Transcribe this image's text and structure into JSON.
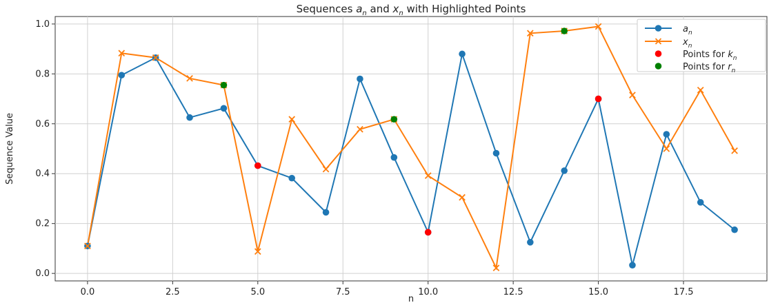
{
  "chart_data": {
    "type": "line",
    "title": "Sequences $a_n$ and $x_n$ with Highlighted Points",
    "xlabel": "n",
    "ylabel": "Sequence Value",
    "xlim": [
      -0.95,
      19.95
    ],
    "ylim": [
      -0.03,
      1.03
    ],
    "x_ticks": [
      0.0,
      2.5,
      5.0,
      7.5,
      10.0,
      12.5,
      15.0,
      17.5
    ],
    "x_tick_labels": [
      "0.0",
      "2.5",
      "5.0",
      "7.5",
      "10.0",
      "12.5",
      "15.0",
      "17.5"
    ],
    "y_ticks": [
      0.0,
      0.2,
      0.4,
      0.6,
      0.8,
      1.0
    ],
    "y_tick_labels": [
      "0.0",
      "0.2",
      "0.4",
      "0.6",
      "0.8",
      "1.0"
    ],
    "grid": true,
    "legend_position": "top-right",
    "x": [
      0,
      1,
      2,
      3,
      4,
      5,
      6,
      7,
      8,
      9,
      10,
      11,
      12,
      13,
      14,
      15,
      16,
      17,
      18,
      19
    ],
    "series": [
      {
        "name": "$a_n$",
        "color": "#1f77b4",
        "marker": "circle",
        "values": [
          0.11,
          0.795,
          0.865,
          0.625,
          0.662,
          0.432,
          0.382,
          0.245,
          0.78,
          0.465,
          0.165,
          0.88,
          0.482,
          0.125,
          0.412,
          0.7,
          0.033,
          0.558,
          0.285,
          0.175
        ]
      },
      {
        "name": "$x_n$",
        "color": "#ff7f0e",
        "marker": "x",
        "values": [
          0.11,
          0.883,
          0.865,
          0.782,
          0.755,
          0.088,
          0.618,
          0.418,
          0.578,
          0.618,
          0.392,
          0.305,
          0.022,
          0.963,
          0.972,
          0.99,
          0.715,
          0.5,
          0.735,
          0.492
        ]
      }
    ],
    "highlights": [
      {
        "name": "Points for $k_n$",
        "color": "#ff0000",
        "x": [
          5,
          10,
          15
        ],
        "values": [
          0.432,
          0.165,
          0.7
        ]
      },
      {
        "name": "Points for $r_n$",
        "color": "#008000",
        "x": [
          4,
          9,
          14
        ],
        "values": [
          0.755,
          0.618,
          0.972
        ]
      }
    ]
  }
}
